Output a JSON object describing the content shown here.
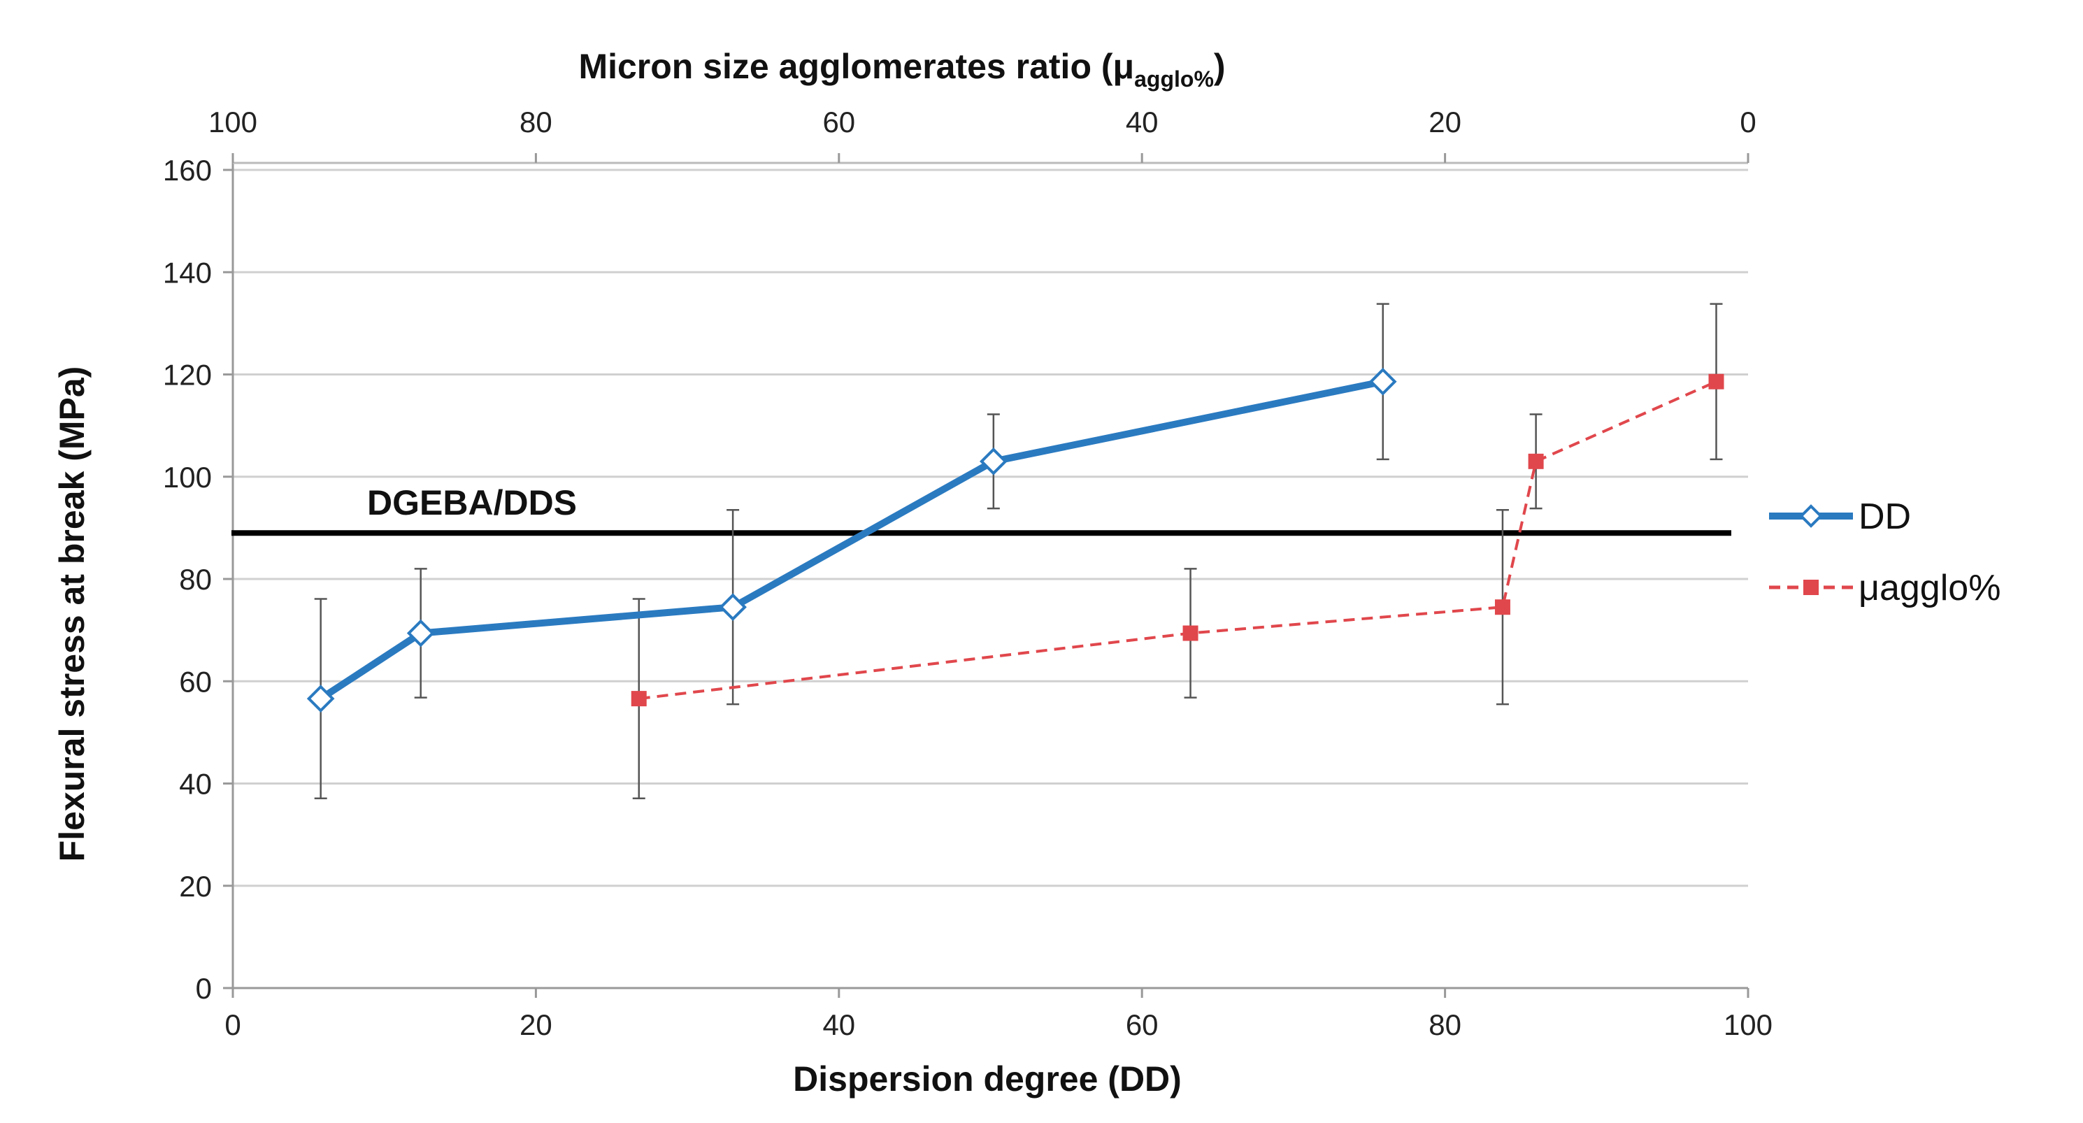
{
  "chart_data": {
    "type": "line",
    "title": "",
    "xlabel": "Dispersion degree (DD)",
    "ylabel": "Flexural stress at break (MPa)",
    "top_axis_label": "Micron size agglomerates ratio (",
    "top_axis_label_mu": "μ",
    "top_axis_label_sub": "agglo%",
    "top_axis_label_close": ")",
    "xlim": [
      0,
      100
    ],
    "x2lim": [
      100,
      0
    ],
    "ylim": [
      0,
      160
    ],
    "x_ticks": [
      "0",
      "20",
      "40",
      "60",
      "80",
      "100"
    ],
    "x2_ticks": [
      "100",
      "80",
      "60",
      "40",
      "20",
      "0"
    ],
    "y_ticks": [
      "0",
      "20",
      "40",
      "60",
      "80",
      "100",
      "120",
      "140",
      "160"
    ],
    "grid": true,
    "legend_position": "right",
    "reference_line": {
      "label": "DGEBA/DDS",
      "y": 89
    },
    "colors": {
      "dd": "#2a7ac0",
      "agglo": "#e0474c",
      "errorbar": "#555555",
      "reference": "#000000",
      "grid": "#d0d0d0"
    },
    "series": [
      {
        "name": "DD",
        "axis": "bottom",
        "style": "solid",
        "marker": "diamond",
        "x": [
          5.8,
          12.4,
          33.0,
          50.2,
          75.9
        ],
        "y": [
          56.6,
          69.4,
          74.5,
          103.0,
          118.6
        ],
        "yerr": [
          19.5,
          12.6,
          19.0,
          9.2,
          15.2
        ]
      },
      {
        "name": "μagglo%",
        "axis": "top",
        "style": "dashed",
        "marker": "square",
        "x": [
          73.2,
          36.8,
          16.2,
          14.0,
          2.1
        ],
        "y": [
          56.6,
          69.4,
          74.5,
          103.0,
          118.6
        ],
        "yerr": [
          19.5,
          12.6,
          19.0,
          9.2,
          15.2
        ]
      }
    ]
  }
}
